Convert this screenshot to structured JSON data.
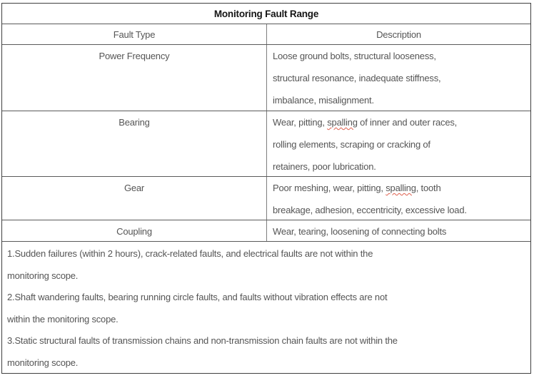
{
  "table": {
    "title": "Monitoring Fault Range",
    "columns": [
      "Fault Type",
      "Description"
    ],
    "rows": [
      {
        "fault_type": "Power Frequency",
        "lines": [
          [
            {
              "t": "Loose ground bolts, structural looseness,"
            }
          ],
          [
            {
              "t": "structural resonance, inadequate stiffness,"
            }
          ],
          [
            {
              "t": "imbalance, misalignment."
            }
          ]
        ]
      },
      {
        "fault_type": "Bearing",
        "lines": [
          [
            {
              "t": "Wear, pitting, "
            },
            {
              "t": "spalling",
              "misspelled": true
            },
            {
              "t": " of inner and outer races,"
            }
          ],
          [
            {
              "t": "rolling elements, scraping or cracking of"
            }
          ],
          [
            {
              "t": "retainers, poor lubrication."
            }
          ]
        ]
      },
      {
        "fault_type": "Gear",
        "lines": [
          [
            {
              "t": "Poor meshing, wear, pitting, "
            },
            {
              "t": "spalling",
              "misspelled": true
            },
            {
              "t": ", tooth"
            }
          ],
          [
            {
              "t": "breakage, adhesion, eccentricity, excessive load."
            }
          ]
        ]
      },
      {
        "fault_type": "Coupling",
        "lines": [
          [
            {
              "t": "Wear, tearing, loosening of connecting bolts"
            }
          ]
        ]
      }
    ]
  },
  "notes": [
    "1.Sudden failures (within 2 hours), crack-related faults, and electrical faults are not within the",
    "monitoring scope.",
    "2.Shaft wandering faults, bearing running circle faults, and faults without vibration effects are not",
    "within the monitoring scope.",
    "3.Static structural faults of transmission chains and non-transmission chain faults are not within the",
    "monitoring scope."
  ],
  "colors": {
    "outer_border": "#3f3f3f",
    "inner_border": "#5a5a5a",
    "column_divider": "#7d7d7d",
    "body_text": "#555555",
    "title_text": "#151515",
    "spellcheck_underline": "#df5f4d"
  }
}
